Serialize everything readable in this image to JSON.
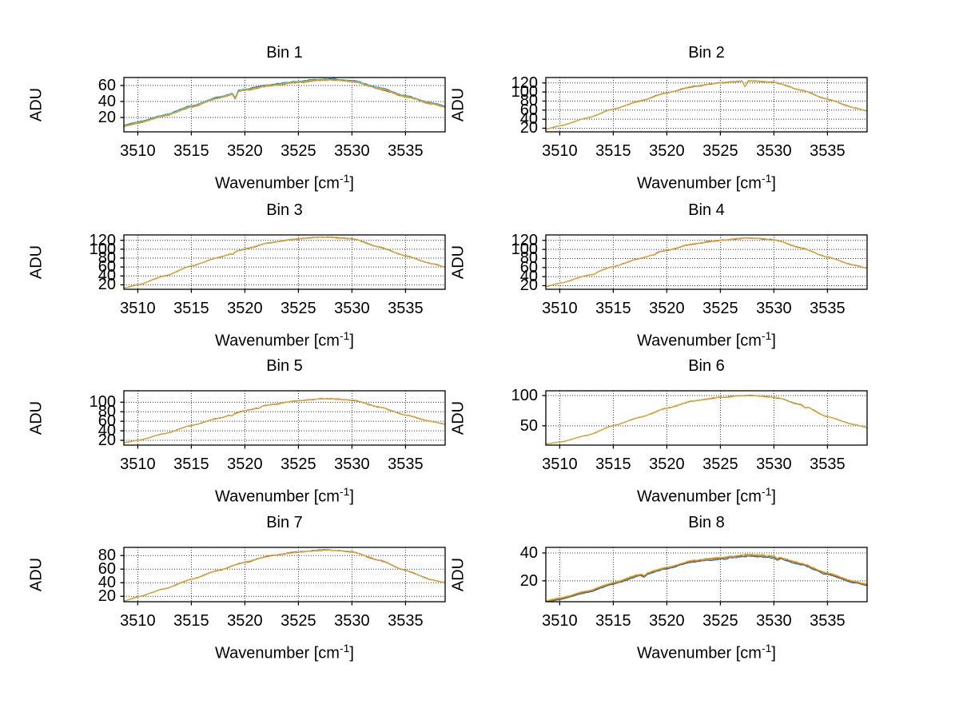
{
  "figure": {
    "background": "#ffffff"
  },
  "labels": {
    "xlabel_main": "Wavenumber [cm",
    "xlabel_sup": "-1",
    "xlabel_close": "]"
  },
  "chart_data": {
    "type": "line",
    "layout": "4-rows-2-cols-subplots",
    "grid": "dotted",
    "legend": "none",
    "x_label": "Wavenumber [cm^-1]",
    "y_label": "ADU",
    "xlim": [
      3508.7,
      3538.7
    ],
    "x_ticks": [
      3510,
      3515,
      3520,
      3525,
      3530,
      3535
    ],
    "x_samples": [
      3508.7,
      3510,
      3512.5,
      3515,
      3517.5,
      3520,
      3522.5,
      3525,
      3527.5,
      3530,
      3532.5,
      3535,
      3537.5,
      3538.7
    ],
    "series_colors": [
      "#7E2F8E",
      "#0072BD",
      "#4DBEEE",
      "#77AC30",
      "#D95319",
      "#EDB120"
    ],
    "bins": [
      {
        "title": "Bin 1",
        "ylabel": "ADU",
        "y_ticks": [
          20,
          40,
          60
        ],
        "ylim": [
          2,
          70
        ],
        "values": [
          9,
          13,
          22,
          33,
          44,
          54,
          60,
          64,
          67,
          65,
          56,
          46,
          37,
          33
        ],
        "offsets": [
          0.2,
          1.5,
          1.0,
          0.5,
          -0.3,
          0.1
        ],
        "noise": 0.9,
        "spikes": [
          {
            "x": 3519.1,
            "depth": 8
          }
        ]
      },
      {
        "title": "Bin 2",
        "ylabel": "ADU",
        "y_ticks": [
          20,
          40,
          60,
          80,
          100,
          120
        ],
        "ylim": [
          12,
          132
        ],
        "values": [
          18,
          25,
          42,
          62,
          80,
          98,
          112,
          120,
          124,
          121,
          104,
          84,
          65,
          58
        ],
        "offsets": [
          0.5,
          0.2,
          0.6,
          0.1,
          0,
          0.3
        ],
        "noise": 1.3,
        "spikes": [
          {
            "x": 3527.3,
            "depth": 13
          }
        ]
      },
      {
        "title": "Bin 3",
        "ylabel": "ADU",
        "y_ticks": [
          20,
          40,
          60,
          80,
          100,
          120
        ],
        "ylim": [
          10,
          132
        ],
        "values": [
          13,
          20,
          40,
          62,
          81,
          100,
          115,
          123,
          127,
          123,
          105,
          85,
          67,
          60
        ],
        "offsets": [
          0.3,
          0.1,
          0.4,
          0.2,
          0,
          0.2
        ],
        "noise": 1.3,
        "spikes": [
          {
            "x": 3518.9,
            "depth": 3
          }
        ]
      },
      {
        "title": "Bin 4",
        "ylabel": "ADU",
        "y_ticks": [
          20,
          40,
          60,
          80,
          100,
          120
        ],
        "ylim": [
          12,
          132
        ],
        "values": [
          18,
          25,
          42,
          62,
          80,
          98,
          112,
          120,
          125,
          121,
          103,
          83,
          65,
          59
        ],
        "offsets": [
          0.4,
          0.1,
          0.3,
          0.1,
          0,
          0.2
        ],
        "noise": 1.3,
        "spikes": [
          {
            "x": 3513.2,
            "depth": 2
          },
          {
            "x": 3518.8,
            "depth": 2.5
          }
        ]
      },
      {
        "title": "Bin 5",
        "ylabel": "ADU",
        "y_ticks": [
          20,
          40,
          60,
          80,
          100
        ],
        "ylim": [
          10,
          124
        ],
        "values": [
          15,
          20,
          34,
          51,
          66,
          82,
          95,
          103,
          107,
          104,
          90,
          73,
          59,
          54
        ],
        "offsets": [
          0.3,
          0.1,
          0.3,
          0.2,
          0,
          0.2
        ],
        "noise": 1.1,
        "spikes": [
          {
            "x": 3518.8,
            "depth": 3
          },
          {
            "x": 3521.3,
            "depth": 2.5
          }
        ]
      },
      {
        "title": "Bin 6",
        "ylabel": "ADU",
        "y_ticks": [
          50,
          100
        ],
        "ylim": [
          18,
          108
        ],
        "values": [
          20,
          23,
          34,
          50,
          64,
          79,
          91,
          97,
          100,
          97,
          85,
          65,
          52,
          47
        ],
        "offsets": [
          0.2,
          0.1,
          0.2,
          0.1,
          0,
          0.1
        ],
        "noise": 1.0,
        "spikes": [
          {
            "x": 3532.9,
            "depth": 3.5
          }
        ]
      },
      {
        "title": "Bin 7",
        "ylabel": "ADU",
        "y_ticks": [
          20,
          40,
          60,
          80
        ],
        "ylim": [
          12,
          92
        ],
        "values": [
          13,
          19,
          31,
          45,
          58,
          70,
          80,
          85,
          88,
          85,
          73,
          58,
          44,
          40
        ],
        "offsets": [
          0.3,
          0.2,
          0.3,
          0.1,
          0,
          0.2
        ],
        "noise": 1.0,
        "spikes": []
      },
      {
        "title": "Bin 8",
        "ylabel": "ADU",
        "y_ticks": [
          20,
          40
        ],
        "ylim": [
          5,
          44
        ],
        "values": [
          5,
          7,
          12,
          18,
          24,
          29,
          34,
          36,
          38,
          37,
          32,
          25,
          19,
          17
        ],
        "offsets": [
          0.2,
          -0.5,
          0.3,
          0.5,
          0,
          0.9
        ],
        "noise": 0.6,
        "spikes": [
          {
            "x": 3517.9,
            "depth": 1.8
          },
          {
            "x": 3530.3,
            "depth": 1.5
          }
        ]
      }
    ]
  }
}
